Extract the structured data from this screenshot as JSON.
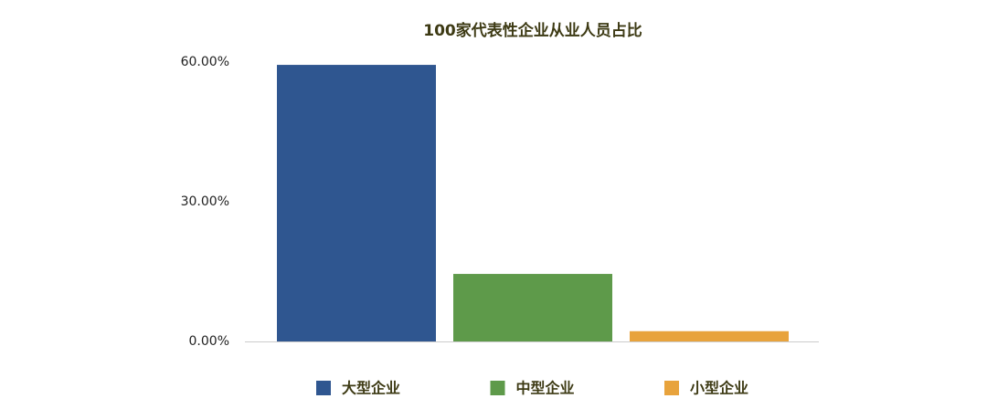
{
  "chart_data": {
    "type": "bar",
    "title": "100家代表性企业从业人员占比",
    "categories": [
      null
    ],
    "series": [
      {
        "name": "大型企业",
        "color": "#2f5690",
        "values": [
          59.4
        ]
      },
      {
        "name": "中型企业",
        "color": "#5e9a4a",
        "values": [
          14.5
        ]
      },
      {
        "name": "小型企业",
        "color": "#e8a33c",
        "values": [
          2.2
        ]
      }
    ],
    "ylim": [
      0,
      60
    ],
    "yticks": [
      {
        "value": 0,
        "label": "0.00%"
      },
      {
        "value": 30,
        "label": "30.00%"
      },
      {
        "value": 60,
        "label": "60.00%"
      }
    ],
    "grid": false
  }
}
